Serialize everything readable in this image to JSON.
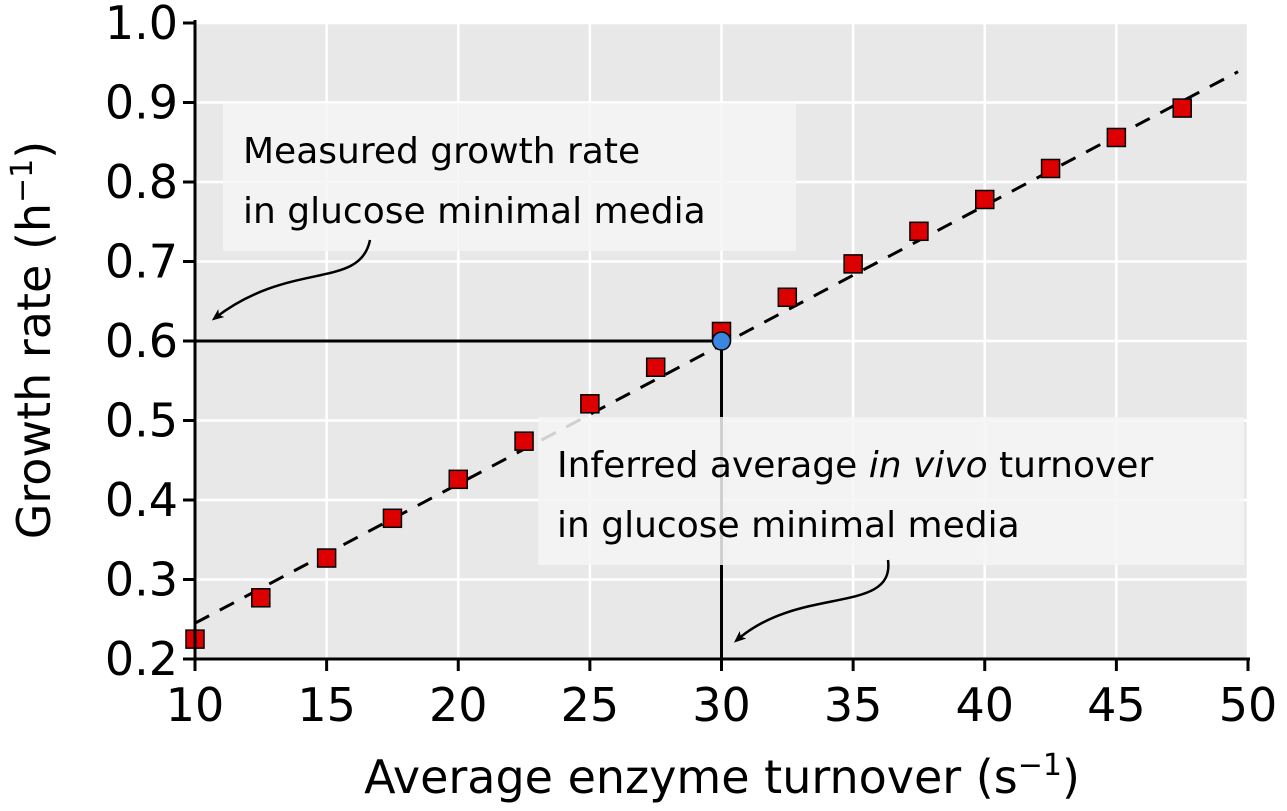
{
  "chart_data": {
    "type": "scatter",
    "xlabel": "Average enzyme turnover (s",
    "xlabel_sup": "−1",
    "xlabel_end": ")",
    "ylabel": "Growth rate (h",
    "ylabel_sup": "−1",
    "ylabel_end": ")",
    "xlim": [
      10,
      50
    ],
    "ylim": [
      0.2,
      1.0
    ],
    "x_ticks": [
      "10",
      "15",
      "20",
      "25",
      "30",
      "35",
      "40",
      "45",
      "50"
    ],
    "y_ticks": [
      "0.2",
      "0.3",
      "0.4",
      "0.5",
      "0.6",
      "0.7",
      "0.8",
      "0.9",
      "1.0"
    ],
    "grid": true,
    "plot_background": "#e8e8e8",
    "grid_color": "#ffffff",
    "series": [
      {
        "marker": "square",
        "color": "#dd0000",
        "points": [
          {
            "x": 10,
            "y": 0.225
          },
          {
            "x": 12.5,
            "y": 0.277
          },
          {
            "x": 15,
            "y": 0.327
          },
          {
            "x": 17.5,
            "y": 0.377
          },
          {
            "x": 20,
            "y": 0.426
          },
          {
            "x": 22.5,
            "y": 0.474
          },
          {
            "x": 25,
            "y": 0.521
          },
          {
            "x": 27.5,
            "y": 0.567
          },
          {
            "x": 30,
            "y": 0.612
          },
          {
            "x": 32.5,
            "y": 0.655
          },
          {
            "x": 35,
            "y": 0.697
          },
          {
            "x": 37.5,
            "y": 0.738
          },
          {
            "x": 40,
            "y": 0.778
          },
          {
            "x": 42.5,
            "y": 0.817
          },
          {
            "x": 45,
            "y": 0.856
          },
          {
            "x": 47.5,
            "y": 0.893
          }
        ]
      }
    ],
    "fit_line": {
      "style": "dashed",
      "color": "#000000",
      "points": [
        {
          "x": 10,
          "y": 0.245
        },
        {
          "x": 50,
          "y": 0.945
        }
      ]
    },
    "highlight_point": {
      "x": 30,
      "y": 0.6,
      "color": "#3a86e0"
    },
    "guide_lines": {
      "x": 30,
      "y": 0.6
    },
    "annotations": [
      {
        "lines": [
          "Measured growth rate",
          "in glucose minimal media"
        ]
      },
      {
        "lines_rich": [
          [
            {
              "t": "Inferred average ",
              "i": false
            },
            {
              "t": "in vivo",
              "i": true
            },
            {
              "t": " turnover",
              "i": false
            }
          ],
          [
            {
              "t": "in glucose minimal media",
              "i": false
            }
          ]
        ]
      }
    ]
  }
}
